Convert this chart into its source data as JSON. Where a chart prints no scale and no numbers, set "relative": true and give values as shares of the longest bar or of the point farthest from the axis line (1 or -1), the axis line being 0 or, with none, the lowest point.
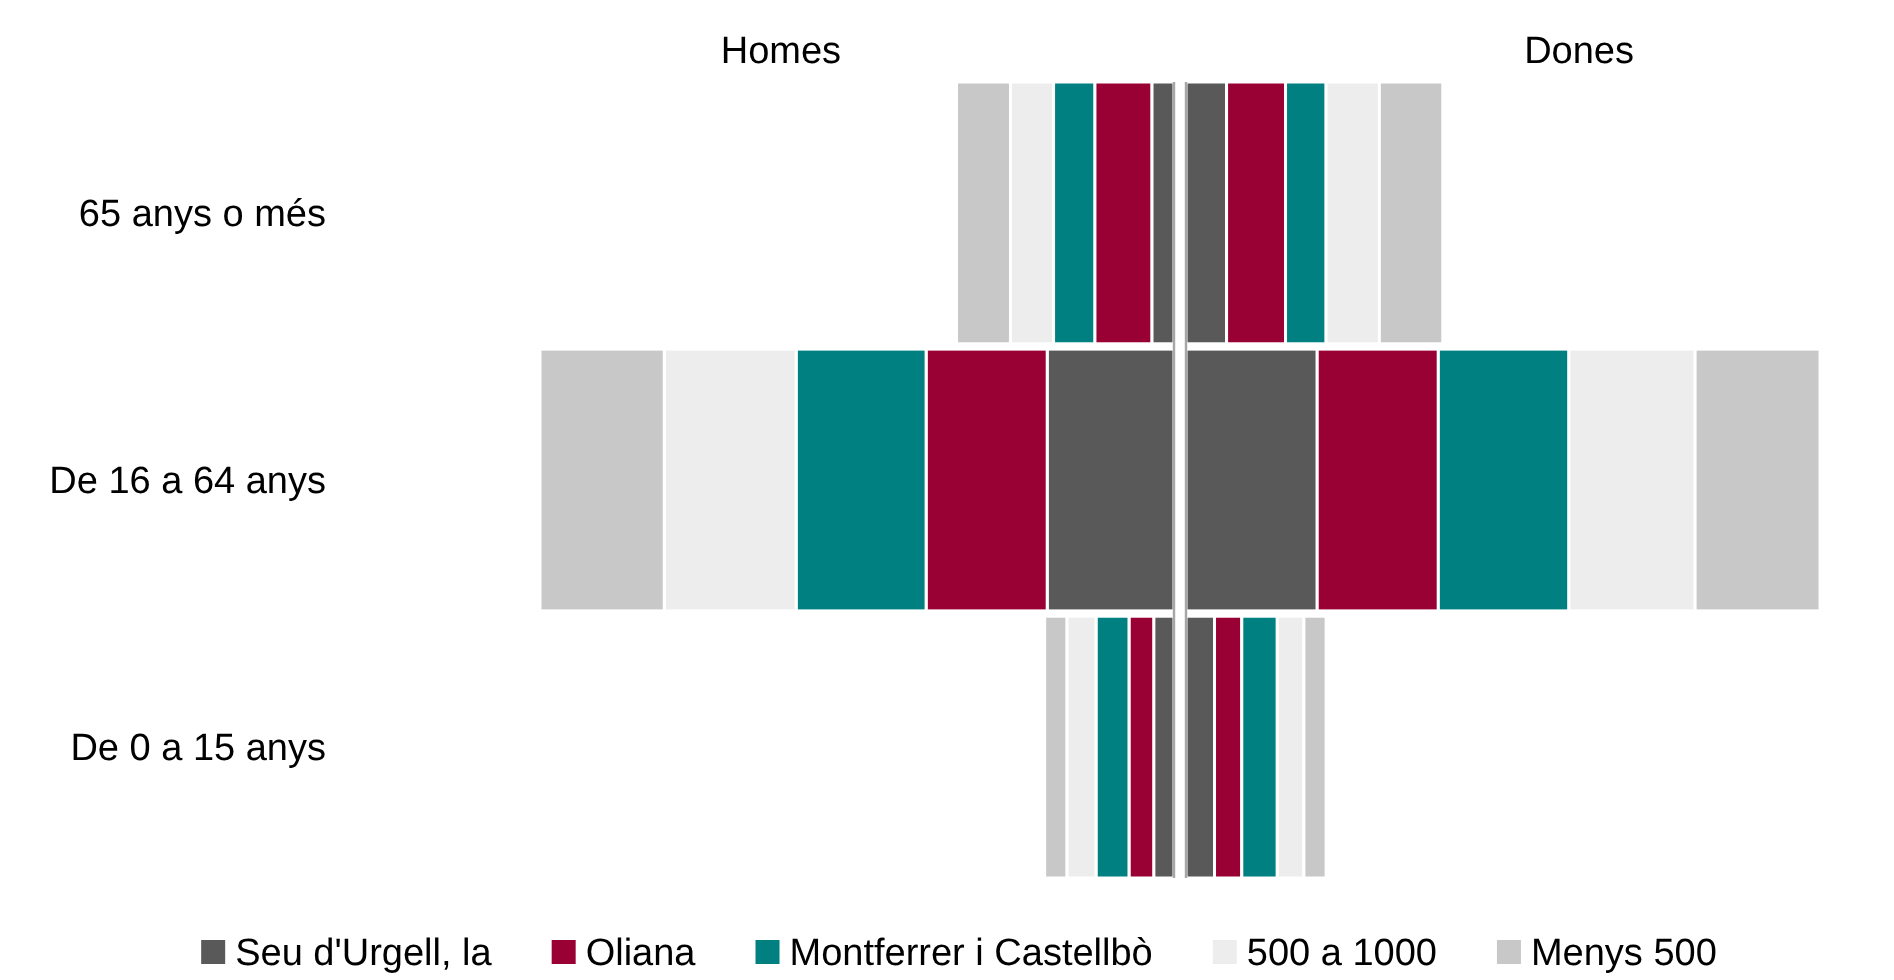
{
  "chart_data": [
    {
      "type": "bar",
      "orientation": "horizontal",
      "stacked": true,
      "relative": true,
      "title": "Homes",
      "categories": [
        "65 anys o més",
        "De 16 a 64 anys",
        "De 0 a 15 anys"
      ],
      "series": [
        {
          "name": "Seu d'Urgell, la",
          "color": "#595959",
          "values": [
            -0.035,
            -0.2,
            -0.032
          ]
        },
        {
          "name": "Oliana",
          "color": "#990033",
          "values": [
            -0.09,
            -0.191,
            -0.039
          ]
        },
        {
          "name": "Montferrer i Castellbò",
          "color": "#008080",
          "values": [
            -0.065,
            -0.205,
            -0.052
          ]
        },
        {
          "name": "500 a 1000",
          "color": "#ededed",
          "values": [
            -0.068,
            -0.208,
            -0.046
          ]
        },
        {
          "name": "Menys 500",
          "color": "#c8c8c8",
          "values": [
            -0.085,
            -0.196,
            -0.035
          ]
        }
      ],
      "legend": "bottom"
    },
    {
      "type": "bar",
      "orientation": "horizontal",
      "stacked": true,
      "relative": true,
      "title": "Dones",
      "categories": [
        null,
        null,
        null
      ],
      "series": [
        {
          "color": "#595959",
          "values": [
            0.064,
            0.207,
            0.045
          ]
        },
        {
          "color": "#990033",
          "values": [
            0.093,
            0.191,
            0.043
          ]
        },
        {
          "color": "#008080",
          "values": [
            0.064,
            0.206,
            0.056
          ]
        },
        {
          "color": "#ededed",
          "values": [
            0.084,
            0.199,
            0.042
          ]
        },
        {
          "color": "#c8c8c8",
          "values": [
            0.1,
            0.197,
            0.035
          ]
        }
      ]
    }
  ]
}
